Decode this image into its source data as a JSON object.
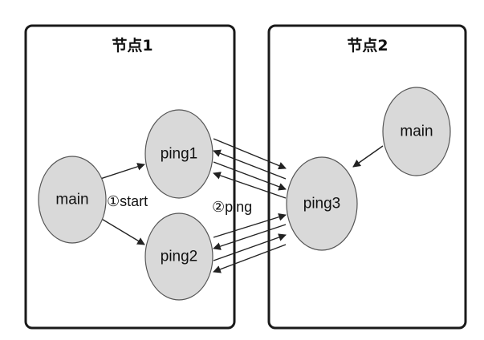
{
  "nodes_box": {
    "left_title": "节点1",
    "right_title": "节点2"
  },
  "node1": {
    "main": "main",
    "ping1": "ping1",
    "ping2": "ping2",
    "start_label": "①start",
    "ping_label": "②ping"
  },
  "node2": {
    "main": "main",
    "ping3": "ping3"
  },
  "colors": {
    "node_fill": "#d9d9d9",
    "border": "#1a1a1a"
  }
}
